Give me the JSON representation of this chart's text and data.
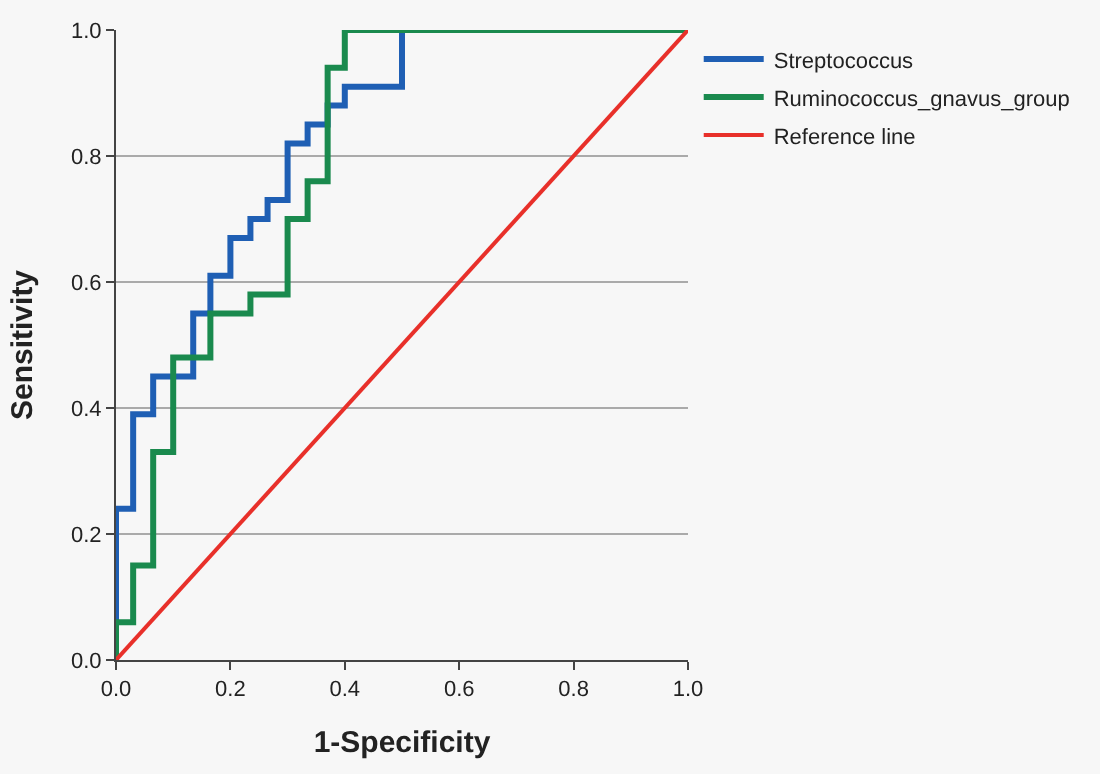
{
  "chart_data": {
    "type": "step",
    "xlabel": "1-Specificity",
    "ylabel": "Sensitivity",
    "series": [
      {
        "name": "Streptococcus",
        "color": "#1f5fb4",
        "x": [
          0,
          0,
          0.03,
          0.065,
          0.135,
          0.165,
          0.2,
          0.235,
          0.265,
          0.3,
          0.335,
          0.37,
          0.4,
          0.5,
          1
        ],
        "values": [
          0,
          0.24,
          0.39,
          0.45,
          0.55,
          0.61,
          0.67,
          0.7,
          0.73,
          0.82,
          0.85,
          0.88,
          0.91,
          1,
          1
        ]
      },
      {
        "name": "Ruminococcus_gnavus_group",
        "color": "#1a8a4e",
        "x": [
          0,
          0,
          0.03,
          0.065,
          0.1,
          0.165,
          0.235,
          0.3,
          0.335,
          0.37,
          0.4,
          1
        ],
        "values": [
          0,
          0.06,
          0.15,
          0.33,
          0.48,
          0.55,
          0.58,
          0.7,
          0.76,
          0.94,
          1,
          1
        ]
      },
      {
        "name": "Reference line",
        "color": "#e8302a",
        "type": "line",
        "x": [
          0,
          1
        ],
        "values": [
          0,
          1
        ]
      }
    ],
    "xlim": [
      0,
      1
    ],
    "ylim": [
      0,
      1
    ],
    "xticks": [
      {
        "value": 0,
        "label": "0.0"
      },
      {
        "value": 0.2,
        "label": "0.2"
      },
      {
        "value": 0.4,
        "label": "0.4"
      },
      {
        "value": 0.6,
        "label": "0.6"
      },
      {
        "value": 0.8,
        "label": "0.8"
      },
      {
        "value": 1,
        "label": "1.0"
      }
    ],
    "yticks": [
      {
        "value": 0,
        "label": "0.0"
      },
      {
        "value": 0.2,
        "label": "0.2"
      },
      {
        "value": 0.4,
        "label": "0.4"
      },
      {
        "value": 0.6,
        "label": "0.6"
      },
      {
        "value": 0.8,
        "label": "0.8"
      },
      {
        "value": 1,
        "label": "1.0"
      }
    ],
    "grid": "y",
    "legend": "top right"
  }
}
